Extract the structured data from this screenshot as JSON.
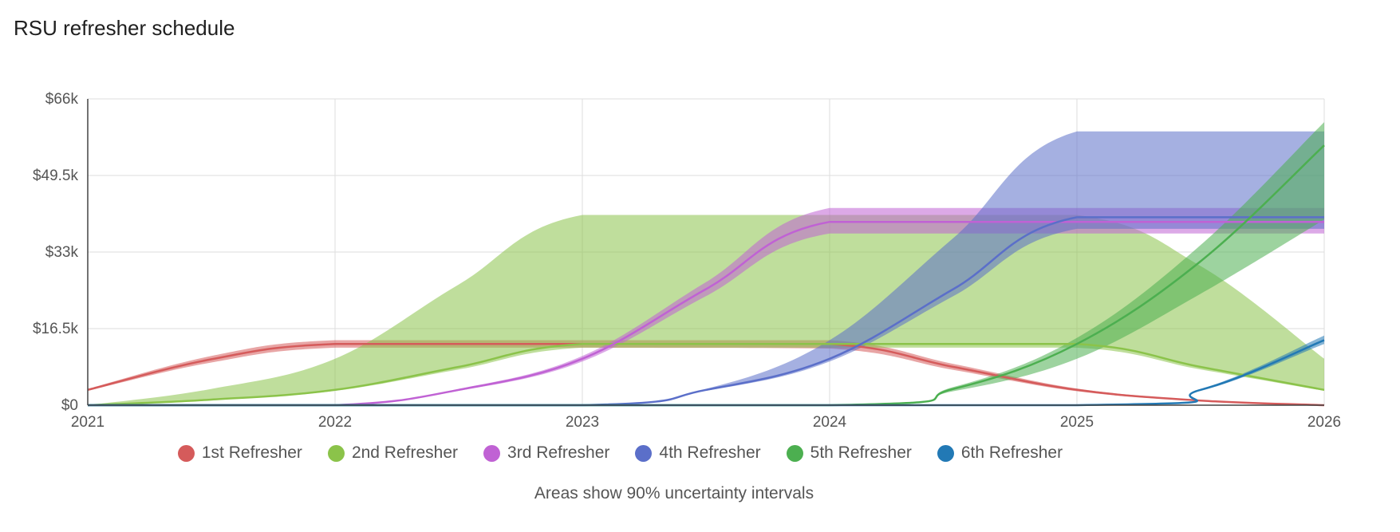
{
  "title": "RSU refresher schedule",
  "caption": "Areas show 90% uncertainty intervals",
  "chart_data": {
    "type": "area",
    "x_ticks": [
      "2021",
      "2022",
      "2023",
      "2024",
      "2025",
      "2026"
    ],
    "y_ticks": [
      "$0",
      "$16.5k",
      "$33k",
      "$49.5k",
      "$66k"
    ],
    "xlim": [
      2021,
      2026
    ],
    "ylim": [
      0,
      66000
    ],
    "grid": true,
    "legend_position": "bottom",
    "series": [
      {
        "name": "1st Refresher",
        "color": "#d55b5b",
        "points": [
          [
            2021,
            3300
          ],
          [
            2021.5,
            9900
          ],
          [
            2022,
            13200
          ],
          [
            2023,
            13200
          ],
          [
            2024,
            13200
          ],
          [
            2024.5,
            8250
          ],
          [
            2025,
            3300
          ],
          [
            2025.5,
            1000
          ],
          [
            2026,
            0
          ]
        ],
        "lower": [
          [
            2021,
            3100
          ],
          [
            2021.5,
            9200
          ],
          [
            2022,
            12400
          ],
          [
            2023,
            12400
          ],
          [
            2024,
            12200
          ],
          [
            2024.5,
            7600
          ],
          [
            2025,
            3000
          ],
          [
            2025.5,
            900
          ],
          [
            2026,
            0
          ]
        ],
        "upper": [
          [
            2021,
            3500
          ],
          [
            2021.5,
            10600
          ],
          [
            2022,
            14000
          ],
          [
            2023,
            14000
          ],
          [
            2024,
            14000
          ],
          [
            2024.5,
            8900
          ],
          [
            2025,
            3600
          ],
          [
            2025.5,
            1100
          ],
          [
            2026,
            0
          ]
        ]
      },
      {
        "name": "2nd Refresher",
        "color": "#8bc34a",
        "points": [
          [
            2021,
            0
          ],
          [
            2021.5,
            1200
          ],
          [
            2022,
            3300
          ],
          [
            2022.5,
            8250
          ],
          [
            2023,
            13200
          ],
          [
            2024,
            13200
          ],
          [
            2025,
            13200
          ],
          [
            2025.5,
            8250
          ],
          [
            2026,
            3300
          ]
        ],
        "lower": [
          [
            2021,
            0
          ],
          [
            2021.5,
            1100
          ],
          [
            2022,
            3100
          ],
          [
            2022.5,
            7700
          ],
          [
            2023,
            12400
          ],
          [
            2024,
            12400
          ],
          [
            2025,
            12400
          ],
          [
            2025.5,
            7700
          ],
          [
            2026,
            3100
          ]
        ],
        "upper": [
          [
            2021,
            0
          ],
          [
            2021.5,
            3500
          ],
          [
            2022,
            10000
          ],
          [
            2022.5,
            26000
          ],
          [
            2023,
            41000
          ],
          [
            2024,
            41000
          ],
          [
            2025,
            41000
          ],
          [
            2025.5,
            30000
          ],
          [
            2026,
            10000
          ]
        ]
      },
      {
        "name": "3rd Refresher",
        "color": "#c062d4",
        "points": [
          [
            2021,
            0
          ],
          [
            2022,
            0
          ],
          [
            2022.5,
            3300
          ],
          [
            2023,
            10000
          ],
          [
            2023.5,
            25000
          ],
          [
            2024,
            39500
          ],
          [
            2025,
            39500
          ],
          [
            2026,
            39500
          ]
        ],
        "lower": [
          [
            2021,
            0
          ],
          [
            2022,
            0
          ],
          [
            2022.5,
            3100
          ],
          [
            2023,
            9400
          ],
          [
            2023.5,
            23500
          ],
          [
            2024,
            37000
          ],
          [
            2025,
            37000
          ],
          [
            2026,
            37000
          ]
        ],
        "upper": [
          [
            2021,
            0
          ],
          [
            2022,
            0
          ],
          [
            2022.5,
            3500
          ],
          [
            2023,
            10600
          ],
          [
            2023.5,
            26500
          ],
          [
            2024,
            42500
          ],
          [
            2025,
            42500
          ],
          [
            2026,
            42500
          ]
        ]
      },
      {
        "name": "4th Refresher",
        "color": "#5b6fc9",
        "points": [
          [
            2021,
            0
          ],
          [
            2023,
            0
          ],
          [
            2023.5,
            3300
          ],
          [
            2024,
            10000
          ],
          [
            2024.5,
            25000
          ],
          [
            2025,
            40500
          ],
          [
            2026,
            40500
          ]
        ],
        "lower": [
          [
            2021,
            0
          ],
          [
            2023,
            0
          ],
          [
            2023.5,
            3100
          ],
          [
            2024,
            9400
          ],
          [
            2024.5,
            23500
          ],
          [
            2025,
            38000
          ],
          [
            2026,
            38000
          ]
        ],
        "upper": [
          [
            2021,
            0
          ],
          [
            2023,
            0
          ],
          [
            2023.5,
            3500
          ],
          [
            2024,
            14000
          ],
          [
            2024.5,
            36000
          ],
          [
            2025,
            59000
          ],
          [
            2026,
            59000
          ]
        ]
      },
      {
        "name": "5th Refresher",
        "color": "#4caf50",
        "points": [
          [
            2021,
            0
          ],
          [
            2024,
            0
          ],
          [
            2024.5,
            3500
          ],
          [
            2025,
            13200
          ],
          [
            2025.5,
            31000
          ],
          [
            2026,
            56000
          ]
        ],
        "lower": [
          [
            2021,
            0
          ],
          [
            2024,
            0
          ],
          [
            2024.5,
            3000
          ],
          [
            2025,
            10000
          ],
          [
            2025.5,
            24000
          ],
          [
            2026,
            40000
          ]
        ],
        "upper": [
          [
            2021,
            0
          ],
          [
            2024,
            0
          ],
          [
            2024.5,
            3900
          ],
          [
            2025,
            14500
          ],
          [
            2025.5,
            34500
          ],
          [
            2026,
            61000
          ]
        ]
      },
      {
        "name": "6th Refresher",
        "color": "#2279b5",
        "points": [
          [
            2021,
            0
          ],
          [
            2025,
            0
          ],
          [
            2025.5,
            3300
          ],
          [
            2026,
            14000
          ]
        ],
        "lower": [
          [
            2021,
            0
          ],
          [
            2025,
            0
          ],
          [
            2025.5,
            3100
          ],
          [
            2026,
            13200
          ]
        ],
        "upper": [
          [
            2021,
            0
          ],
          [
            2025,
            0
          ],
          [
            2025.5,
            3500
          ],
          [
            2026,
            15000
          ]
        ]
      }
    ]
  }
}
